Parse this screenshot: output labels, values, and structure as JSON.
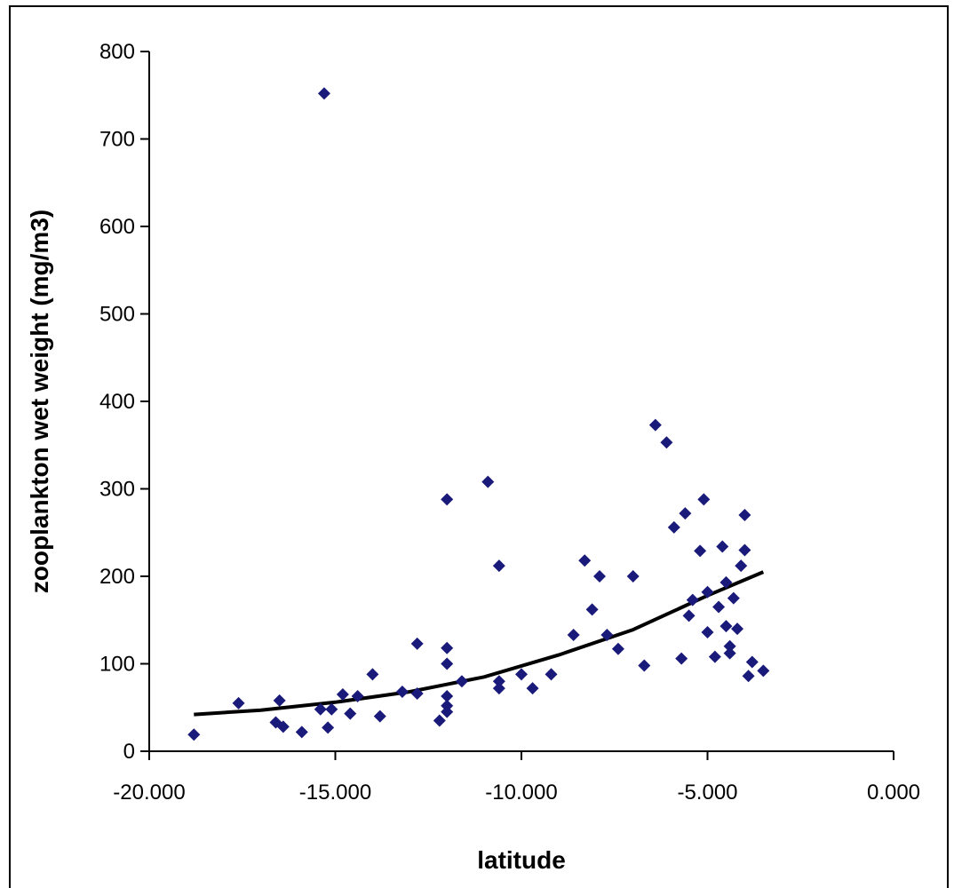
{
  "chart_data": {
    "type": "scatter",
    "title": "",
    "xlabel": "latitude",
    "ylabel": "zooplankton wet weight (mg/m3)",
    "xlim": [
      -20,
      0
    ],
    "ylim": [
      0,
      800
    ],
    "x_ticks": [
      -20,
      -15,
      -10,
      -5,
      0
    ],
    "x_tick_labels": [
      "-20.000",
      "-15.000",
      "-10.000",
      "-5.000",
      "0.000"
    ],
    "y_ticks": [
      0,
      100,
      200,
      300,
      400,
      500,
      600,
      700,
      800
    ],
    "y_tick_labels": [
      "0",
      "100",
      "200",
      "300",
      "400",
      "500",
      "600",
      "700",
      "800"
    ],
    "grid": false,
    "legend": "none",
    "colors": {
      "points": "#1a1a7a",
      "trend": "#000000",
      "axis": "#000000"
    },
    "series": [
      {
        "marker": "diamond",
        "points": [
          [
            -18.8,
            19
          ],
          [
            -17.6,
            55
          ],
          [
            -16.6,
            33
          ],
          [
            -16.5,
            58
          ],
          [
            -16.4,
            28
          ],
          [
            -15.9,
            22
          ],
          [
            -15.4,
            48
          ],
          [
            -15.3,
            752
          ],
          [
            -15.2,
            27
          ],
          [
            -15.1,
            48
          ],
          [
            -14.8,
            65
          ],
          [
            -14.6,
            43
          ],
          [
            -14.4,
            63
          ],
          [
            -14.0,
            88
          ],
          [
            -13.8,
            40
          ],
          [
            -13.2,
            68
          ],
          [
            -12.8,
            123
          ],
          [
            -12.8,
            66
          ],
          [
            -12.2,
            35
          ],
          [
            -12.0,
            288
          ],
          [
            -12.0,
            118
          ],
          [
            -12.0,
            100
          ],
          [
            -12.0,
            63
          ],
          [
            -12.0,
            52
          ],
          [
            -12.0,
            45
          ],
          [
            -11.6,
            80
          ],
          [
            -10.9,
            308
          ],
          [
            -10.6,
            212
          ],
          [
            -10.6,
            80
          ],
          [
            -10.6,
            72
          ],
          [
            -10.0,
            88
          ],
          [
            -9.7,
            72
          ],
          [
            -9.2,
            88
          ],
          [
            -8.6,
            133
          ],
          [
            -8.3,
            218
          ],
          [
            -8.1,
            162
          ],
          [
            -7.9,
            200
          ],
          [
            -7.7,
            133
          ],
          [
            -7.4,
            117
          ],
          [
            -7.0,
            200
          ],
          [
            -6.7,
            98
          ],
          [
            -6.4,
            373
          ],
          [
            -6.1,
            353
          ],
          [
            -5.9,
            256
          ],
          [
            -5.7,
            106
          ],
          [
            -5.6,
            272
          ],
          [
            -5.5,
            155
          ],
          [
            -5.4,
            173
          ],
          [
            -5.2,
            229
          ],
          [
            -5.1,
            288
          ],
          [
            -5.0,
            182
          ],
          [
            -5.0,
            136
          ],
          [
            -4.8,
            108
          ],
          [
            -4.7,
            165
          ],
          [
            -4.6,
            234
          ],
          [
            -4.5,
            193
          ],
          [
            -4.5,
            143
          ],
          [
            -4.4,
            120
          ],
          [
            -4.4,
            112
          ],
          [
            -4.3,
            175
          ],
          [
            -4.2,
            140
          ],
          [
            -4.1,
            212
          ],
          [
            -4.0,
            230
          ],
          [
            -4.0,
            270
          ],
          [
            -3.9,
            86
          ],
          [
            -3.8,
            102
          ],
          [
            -3.5,
            92
          ]
        ]
      }
    ],
    "trendline": {
      "type": "exponential",
      "points": [
        [
          -18.8,
          42
        ],
        [
          -17.0,
          47
        ],
        [
          -15.0,
          56
        ],
        [
          -13.0,
          68
        ],
        [
          -11.0,
          85
        ],
        [
          -9.0,
          110
        ],
        [
          -7.0,
          139
        ],
        [
          -5.0,
          178
        ],
        [
          -3.5,
          205
        ]
      ]
    }
  }
}
